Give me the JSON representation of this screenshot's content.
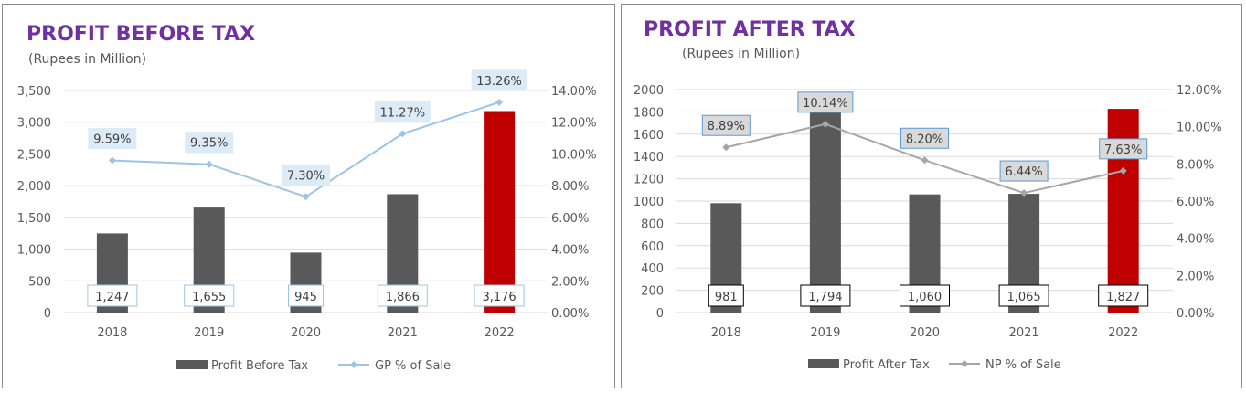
{
  "chart_data": [
    {
      "type": "bar",
      "title": "PROFIT BEFORE TAX",
      "subtitle": "(Rupees in Million)",
      "categories": [
        "2018",
        "2019",
        "2020",
        "2021",
        "2022"
      ],
      "series": [
        {
          "name": "Profit Before Tax",
          "axis": "left",
          "values": [
            1247,
            1655,
            945,
            1866,
            3176
          ],
          "labels": [
            "1,247",
            "1,655",
            "945",
            "1,866",
            "3,176"
          ],
          "colors": [
            "#595959",
            "#595959",
            "#595959",
            "#595959",
            "#c00000"
          ]
        },
        {
          "name": "GP % of Sale",
          "axis": "right",
          "mark": "line",
          "color": "#9dc3e6",
          "values": [
            9.59,
            9.35,
            7.3,
            11.27,
            13.26
          ],
          "labels": [
            "9.59%",
            "9.35%",
            "7.30%",
            "11.27%",
            "13.26%"
          ]
        }
      ],
      "ylim": [
        0,
        3500
      ],
      "yticks": [
        "0",
        "500",
        "1,000",
        "1,500",
        "2,000",
        "2,500",
        "3,000",
        "3,500"
      ],
      "y2lim": [
        0,
        14
      ],
      "y2ticks": [
        "0.00%",
        "2.00%",
        "4.00%",
        "6.00%",
        "8.00%",
        "10.00%",
        "12.00%",
        "14.00%"
      ],
      "grid": true,
      "legend": "bottom"
    },
    {
      "type": "bar",
      "title": "PROFIT AFTER TAX",
      "subtitle": "(Rupees in Million)",
      "categories": [
        "2018",
        "2019",
        "2020",
        "2021",
        "2022"
      ],
      "series": [
        {
          "name": "Profit After Tax",
          "axis": "left",
          "values": [
            981,
            1794,
            1060,
            1065,
            1827
          ],
          "labels": [
            "981",
            "1,794",
            "1,060",
            "1,065",
            "1,827"
          ],
          "colors": [
            "#595959",
            "#595959",
            "#595959",
            "#595959",
            "#c00000"
          ]
        },
        {
          "name": "NP % of Sale",
          "axis": "right",
          "mark": "line",
          "color": "#a6a6a6",
          "values": [
            8.89,
            10.14,
            8.2,
            6.44,
            7.63
          ],
          "labels": [
            "8.89%",
            "10.14%",
            "8.20%",
            "6.44%",
            "7.63%"
          ]
        }
      ],
      "ylim": [
        0,
        2000
      ],
      "yticks": [
        "0",
        "200",
        "400",
        "600",
        "800",
        "1000",
        "1200",
        "1400",
        "1600",
        "1800",
        "2000"
      ],
      "y2lim": [
        0,
        12
      ],
      "y2ticks": [
        "0.00%",
        "2.00%",
        "4.00%",
        "6.00%",
        "8.00%",
        "10.00%",
        "12.00%"
      ],
      "grid": true,
      "legend": "bottom"
    }
  ]
}
